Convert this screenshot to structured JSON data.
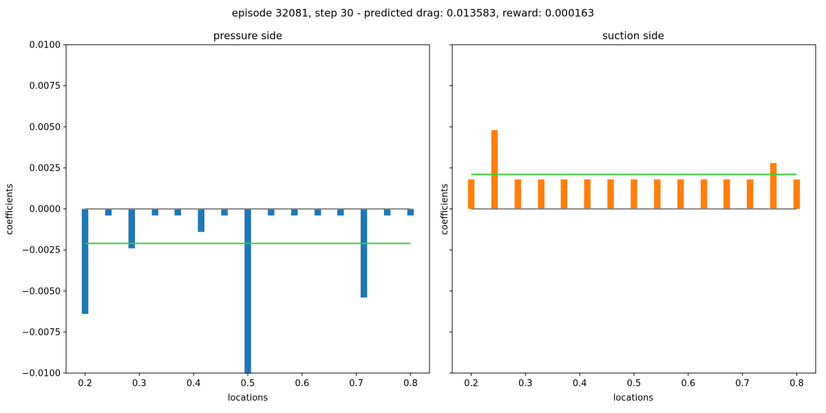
{
  "figure_title": "episode 32081, step 30 - predicted drag: 0.013583, reward: 0.000163",
  "colors": {
    "pressure_bar": "#1f77b4",
    "suction_bar": "#ff7f0e",
    "mean_line": "#32cd32",
    "zero_line": "#808080",
    "axis": "#000000"
  },
  "chart_data": [
    {
      "type": "bar",
      "title": "pressure side",
      "xlabel": "locations",
      "ylabel": "coefficients",
      "xlim": [
        0.165,
        0.835
      ],
      "ylim": [
        -0.01,
        0.01
      ],
      "xticks": [
        0.2,
        0.3,
        0.4,
        0.5,
        0.6,
        0.7,
        0.8
      ],
      "xtick_labels": [
        "0.2",
        "0.3",
        "0.4",
        "0.5",
        "0.6",
        "0.7",
        "0.8"
      ],
      "yticks": [
        -0.01,
        -0.0075,
        -0.005,
        -0.0025,
        0.0,
        0.0025,
        0.005,
        0.0075,
        0.01
      ],
      "ytick_labels": [
        "−0.0100",
        "−0.0075",
        "−0.0050",
        "−0.0025",
        "0.0000",
        "0.0025",
        "0.0050",
        "0.0075",
        "0.0100"
      ],
      "bar_width": 0.012,
      "x": [
        0.2,
        0.243,
        0.286,
        0.329,
        0.371,
        0.414,
        0.457,
        0.5,
        0.543,
        0.586,
        0.629,
        0.671,
        0.714,
        0.757,
        0.8
      ],
      "values": [
        -0.0064,
        -0.0004,
        -0.0024,
        -0.0004,
        -0.0004,
        -0.0014,
        -0.0004,
        -0.0101,
        -0.0004,
        -0.0004,
        -0.0004,
        -0.0004,
        -0.0054,
        -0.0004,
        -0.0004
      ],
      "mean_line": {
        "x": [
          0.2,
          0.8
        ],
        "y": -0.0021
      },
      "zero_line": {
        "x": [
          0.2,
          0.8
        ],
        "y": 0.0
      }
    },
    {
      "type": "bar",
      "title": "suction side",
      "xlabel": "locations",
      "ylabel": "coefficients",
      "xlim": [
        0.165,
        0.835
      ],
      "ylim": [
        -0.01,
        0.01
      ],
      "xticks": [
        0.2,
        0.3,
        0.4,
        0.5,
        0.6,
        0.7,
        0.8
      ],
      "xtick_labels": [
        "0.2",
        "0.3",
        "0.4",
        "0.5",
        "0.6",
        "0.7",
        "0.8"
      ],
      "yticks": [
        -0.01,
        -0.0075,
        -0.005,
        -0.0025,
        0.0,
        0.0025,
        0.005,
        0.0075,
        0.01
      ],
      "ytick_labels": [],
      "bar_width": 0.012,
      "x": [
        0.2,
        0.243,
        0.286,
        0.329,
        0.371,
        0.414,
        0.457,
        0.5,
        0.543,
        0.586,
        0.629,
        0.671,
        0.714,
        0.757,
        0.8
      ],
      "values": [
        0.0018,
        0.0048,
        0.0018,
        0.0018,
        0.0018,
        0.0018,
        0.0018,
        0.0018,
        0.0018,
        0.0018,
        0.0018,
        0.0018,
        0.0018,
        0.0028,
        0.0018
      ],
      "mean_line": {
        "x": [
          0.2,
          0.8
        ],
        "y": 0.0021
      },
      "zero_line": {
        "x": [
          0.2,
          0.8
        ],
        "y": 0.0
      }
    }
  ]
}
